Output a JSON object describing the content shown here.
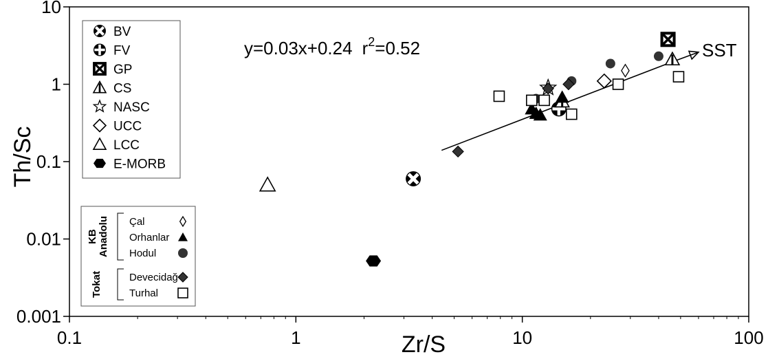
{
  "chart_data": {
    "type": "scatter",
    "xscale": "log",
    "yscale": "log",
    "xlabel": "Zr/S",
    "ylabel": "Th/Sc",
    "xlim": [
      0.1,
      100
    ],
    "ylim": [
      0.001,
      10
    ],
    "xticks": [
      "0.1",
      "1",
      "10",
      "100"
    ],
    "yticks": [
      "0.001",
      "0.01",
      "0.1",
      "1",
      "10"
    ],
    "grid": false,
    "equation": "y=0.03x+0.24",
    "r2_label": "r",
    "r2_exp": "2",
    "r2_value": "=0.52",
    "trend_label": "SST",
    "trend_line": {
      "x": [
        4.4,
        46
      ],
      "y": [
        0.14,
        1.95
      ]
    },
    "trend_arrow": {
      "x": [
        46,
        60
      ],
      "y": [
        1.95,
        2.6
      ]
    },
    "reference_legend": [
      {
        "key": "bv",
        "label": "BV"
      },
      {
        "key": "fv",
        "label": "FV"
      },
      {
        "key": "gp",
        "label": "GP"
      },
      {
        "key": "cs",
        "label": "CS"
      },
      {
        "key": "nasc",
        "label": "NASC"
      },
      {
        "key": "ucc",
        "label": "UCC"
      },
      {
        "key": "lcc",
        "label": "LCC"
      },
      {
        "key": "emorb",
        "label": "E-MORB"
      }
    ],
    "sample_legend": {
      "groups": [
        {
          "label": "KB",
          "label2": "Anadolu",
          "items": [
            {
              "key": "cal",
              "label": "Çal"
            },
            {
              "key": "orhanlar",
              "label": "Orhanlar"
            },
            {
              "key": "hodul",
              "label": "Hodul"
            }
          ]
        },
        {
          "label": "Tokat",
          "label2": "",
          "items": [
            {
              "key": "devecidag",
              "label": "Devecidağ"
            },
            {
              "key": "turhal",
              "label": "Turhal"
            }
          ]
        }
      ]
    },
    "series": [
      {
        "key": "bv",
        "marker": "circle-cross",
        "points": [
          [
            3.3,
            0.06
          ]
        ]
      },
      {
        "key": "fv",
        "marker": "circle-plus",
        "points": [
          [
            14.5,
            0.48
          ]
        ]
      },
      {
        "key": "gp",
        "marker": "box-x",
        "points": [
          [
            44,
            3.8
          ]
        ]
      },
      {
        "key": "cs",
        "marker": "half-triangle",
        "points": [
          [
            46,
            2.1
          ],
          [
            15,
            0.6
          ]
        ]
      },
      {
        "key": "nasc",
        "marker": "star",
        "points": [
          [
            13,
            0.9
          ]
        ]
      },
      {
        "key": "ucc",
        "marker": "diamond-open",
        "points": [
          [
            23,
            1.1
          ]
        ]
      },
      {
        "key": "lcc",
        "marker": "triangle-open",
        "points": [
          [
            0.75,
            0.05
          ]
        ]
      },
      {
        "key": "emorb",
        "marker": "hexagon-filled",
        "points": [
          [
            2.2,
            0.0052
          ]
        ]
      },
      {
        "key": "cal",
        "marker": "diamond-open-small",
        "points": [
          [
            28.5,
            1.5
          ]
        ]
      },
      {
        "key": "orhanlar",
        "marker": "triangle-filled",
        "points": [
          [
            11,
            0.48
          ],
          [
            11.5,
            0.42
          ],
          [
            12,
            0.4
          ],
          [
            15,
            0.68
          ]
        ]
      },
      {
        "key": "hodul",
        "marker": "circle-filled",
        "points": [
          [
            16.5,
            1.1
          ],
          [
            24.5,
            1.85
          ],
          [
            40,
            2.3
          ],
          [
            11.5,
            0.65
          ]
        ]
      },
      {
        "key": "devecidag",
        "marker": "diamond-filled",
        "points": [
          [
            5.2,
            0.135
          ],
          [
            16,
            1.0
          ],
          [
            13,
            0.88
          ]
        ]
      },
      {
        "key": "turhal",
        "marker": "square-open",
        "points": [
          [
            7.9,
            0.7
          ],
          [
            11,
            0.62
          ],
          [
            12.5,
            0.62
          ],
          [
            16.5,
            0.41
          ],
          [
            26.5,
            1.0
          ],
          [
            49,
            1.25
          ]
        ]
      }
    ]
  }
}
